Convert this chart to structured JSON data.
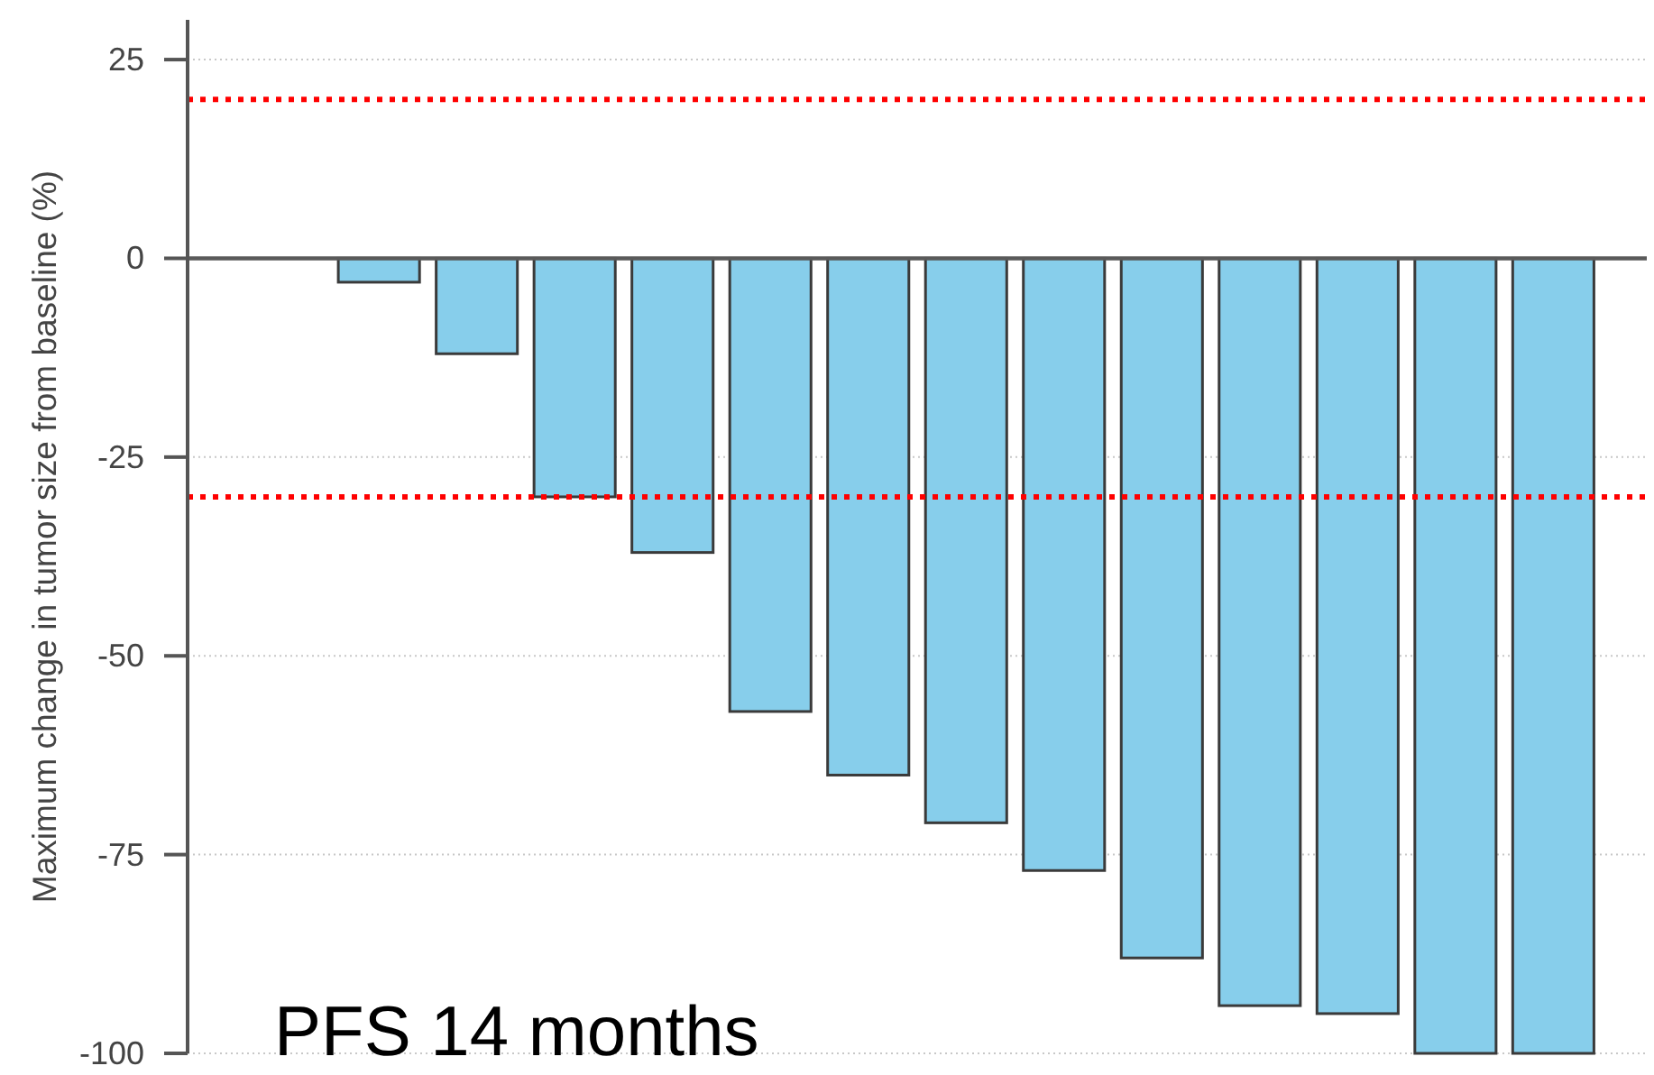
{
  "chart_data": {
    "type": "bar",
    "ylabel": "Maximum change in tumor size from baseline (%)",
    "annotations": [
      "PFS 14 months"
    ],
    "categories": [
      null,
      null,
      null,
      null,
      null,
      null,
      null,
      null,
      null,
      null,
      null,
      null,
      null,
      null
    ],
    "values": [
      0,
      -3,
      -12,
      -30,
      -37,
      -57,
      -65,
      -71,
      -77,
      -88,
      -94,
      -95,
      -100,
      -100
    ],
    "color": "#87ceeb",
    "ylim": [
      -100,
      30
    ],
    "yticks": [
      -100,
      -75,
      -50,
      -25,
      0,
      25
    ],
    "grid": "y",
    "tick_labels": "y",
    "ref_lines": [
      {
        "axis": "y",
        "value": 20,
        "color": "#ff0000",
        "line_style": "dotted"
      },
      {
        "axis": "y",
        "value": -30,
        "color": "#ff0000",
        "line_style": "dotted"
      }
    ]
  }
}
